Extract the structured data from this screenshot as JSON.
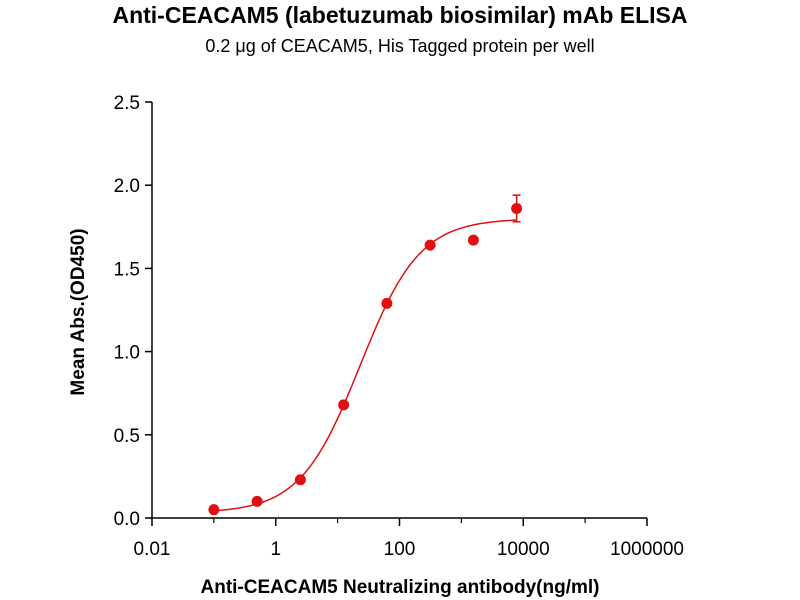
{
  "chart_data": {
    "type": "scatter",
    "title": "Anti-CEACAM5 (labetuzumab biosimilar) mAb ELISA",
    "subtitle": "0.2 μg of CEACAM5, His Tagged protein per well",
    "xlabel": "Anti-CEACAM5 Neutralizing antibody(ng/ml)",
    "ylabel": "Mean Abs.(OD450)",
    "x_scale": "log",
    "xlim": [
      0.01,
      1000000
    ],
    "ylim": [
      0,
      2.5
    ],
    "x_ticks": [
      0.01,
      1,
      100,
      10000,
      1000000
    ],
    "x_tick_labels": [
      "0.01",
      "1",
      "100",
      "10000",
      "1000000"
    ],
    "y_ticks": [
      0,
      0.5,
      1,
      1.5,
      2,
      2.5
    ],
    "y_tick_labels": [
      "0.0",
      "0.5",
      "1.0",
      "1.5",
      "2.0",
      "2.5"
    ],
    "grid": false,
    "legend": "none",
    "series": [
      {
        "color": "#e01010",
        "points": [
          {
            "x": 0.1,
            "y": 0.05
          },
          {
            "x": 0.5,
            "y": 0.1
          },
          {
            "x": 2.5,
            "y": 0.23
          },
          {
            "x": 12.5,
            "y": 0.68
          },
          {
            "x": 62.5,
            "y": 1.29
          },
          {
            "x": 312.5,
            "y": 1.64
          },
          {
            "x": 1562.5,
            "y": 1.67
          },
          {
            "x": 7812.5,
            "y": 1.86,
            "error": 0.08
          }
        ],
        "fit_curve": {
          "model": "4PL",
          "bottom": 0.03,
          "top": 1.8,
          "ec50": 23,
          "hill": 0.9
        }
      }
    ]
  }
}
